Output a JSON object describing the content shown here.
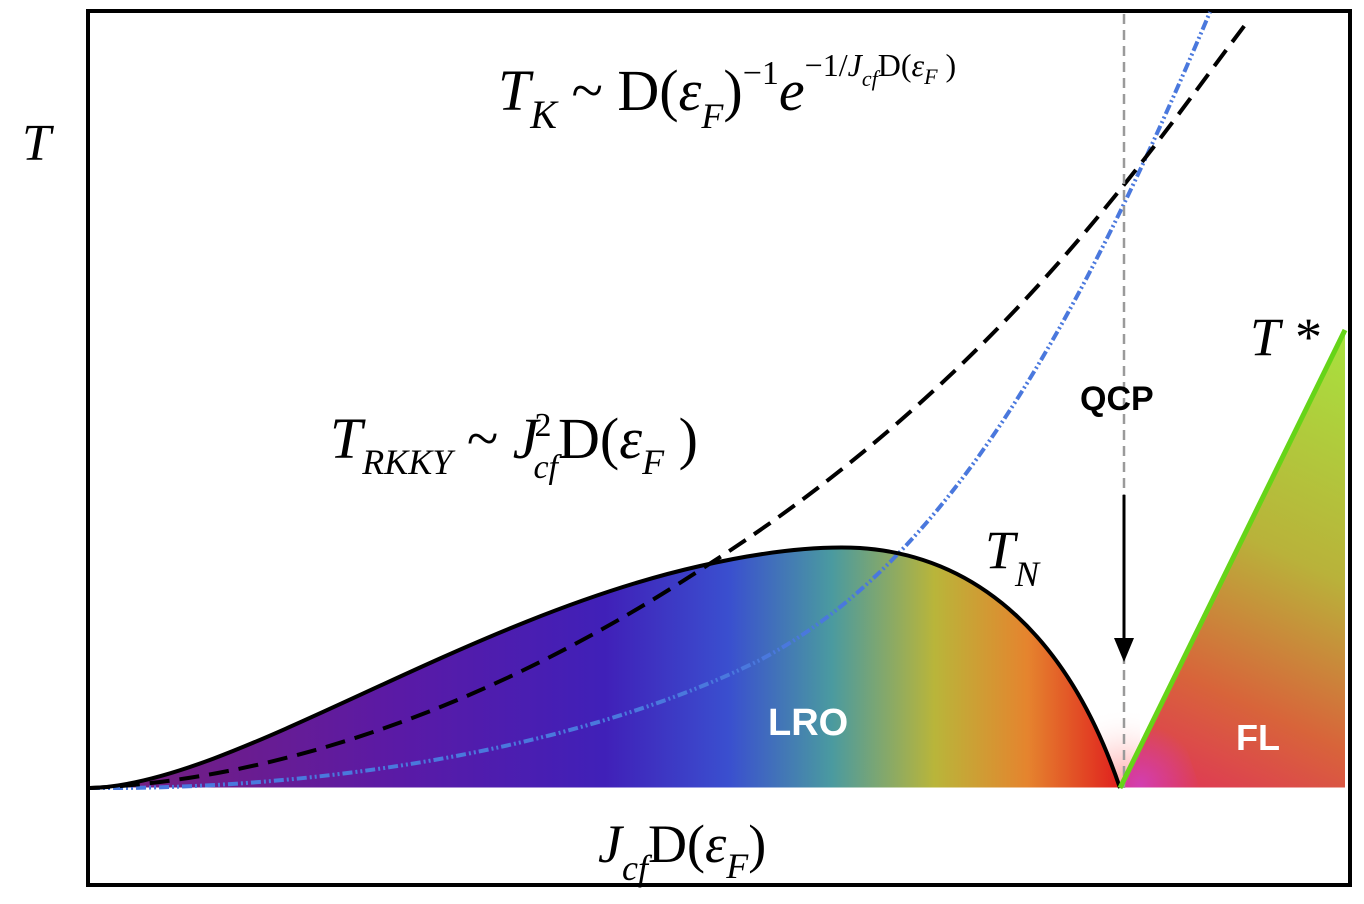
{
  "axes": {
    "y_label": "T",
    "x_label": {
      "base": "J",
      "sub": "cf",
      "rest": "D(",
      "eps": "ε",
      "eps_sub": "F",
      "close": ")"
    }
  },
  "labels": {
    "tk": {
      "base": "T",
      "sub": "K",
      "mid": " ~ D(",
      "eps": "ε",
      "eps_sub": "F",
      "close": ")",
      "exp_sup": "−1",
      "e": "e",
      "exp2": "−1/",
      "exp2_J": "J",
      "exp2_cf": "cf",
      "exp2_rest": "D(",
      "exp2_eps": "ε",
      "exp2_F": "F",
      "exp2_close": " )"
    },
    "trkky": {
      "base": "T",
      "sub": "RKKY",
      "mid": " ~ ",
      "J": "J",
      "sup": "2",
      "cf": "cf",
      "rest": "D(",
      "eps": "ε",
      "eps_sub": "F",
      "close": " )"
    },
    "tn": {
      "base": "T",
      "sub": "N"
    },
    "tstar": "T *",
    "qcp": "QCP",
    "lro": "LRO",
    "fl": "FL"
  },
  "colors": {
    "frame": "#000000",
    "tk_curve": "#3f6fd8",
    "tn_curve": "#000000",
    "tstar_line": "#6fd21f",
    "qcp_line": "#999999",
    "region_label": "#ffffff"
  }
}
